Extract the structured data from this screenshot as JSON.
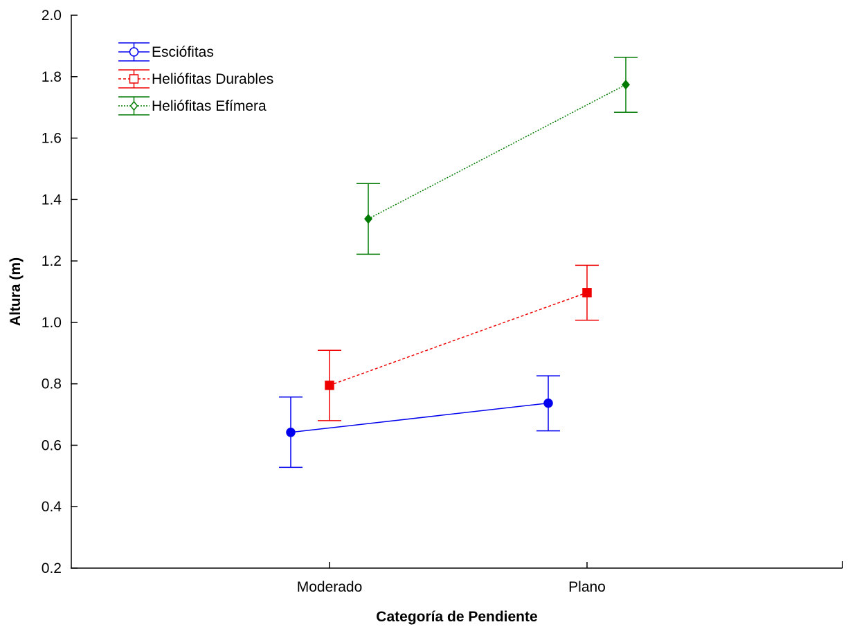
{
  "chart_data": {
    "type": "line",
    "xlabel": "Categoría de Pendiente",
    "ylabel": "Altura (m)",
    "categories": [
      "Moderado",
      "Plano"
    ],
    "ylim": [
      0.2,
      2.0
    ],
    "yticks": [
      "0.2",
      "0.4",
      "0.6",
      "0.8",
      "1.0",
      "1.2",
      "1.4",
      "1.6",
      "1.8",
      "2.0"
    ],
    "legend_position": "top-left",
    "series": [
      {
        "name": "Esciófitas",
        "color": "#0000ee",
        "marker": "circle",
        "line_style": "solid",
        "values": [
          0.642,
          0.737
        ],
        "error_low": [
          0.528,
          0.647
        ],
        "error_high": [
          0.757,
          0.826
        ]
      },
      {
        "name": "Heliófitas Durables",
        "color": "#ee0000",
        "marker": "square",
        "line_style": "dashed",
        "values": [
          0.795,
          1.097
        ],
        "error_low": [
          0.68,
          1.007
        ],
        "error_high": [
          0.909,
          1.186
        ]
      },
      {
        "name": "Heliófitas Efímera",
        "color": "#007a00",
        "marker": "diamond",
        "line_style": "dotted",
        "values": [
          1.337,
          1.774
        ],
        "error_low": [
          1.222,
          1.684
        ],
        "error_high": [
          1.452,
          1.863
        ]
      }
    ]
  }
}
